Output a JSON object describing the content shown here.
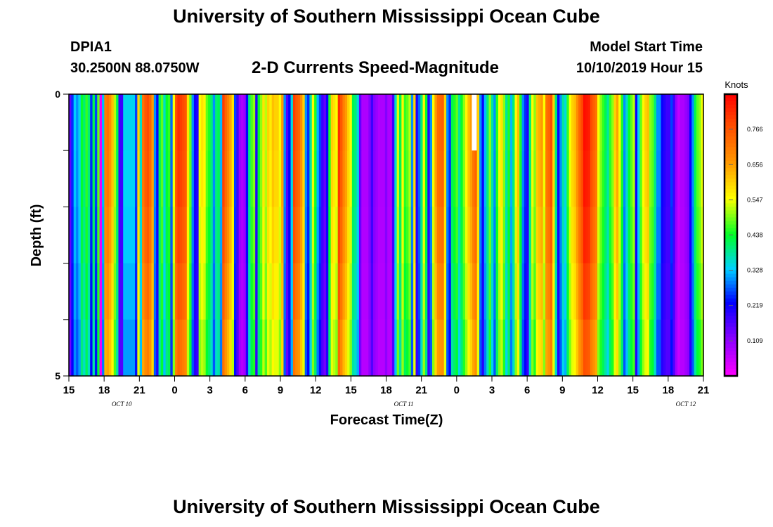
{
  "header": {
    "title": "University of Southern Mississippi Ocean Cube",
    "station_id": "DPIA1",
    "location": "30.2500N 88.0750W",
    "model_start_label": "Model Start Time",
    "model_start_value": "10/10/2019 Hour 15"
  },
  "footer": {
    "title": "University of Southern Mississippi Ocean Cube"
  },
  "chart_data": {
    "type": "heatmap",
    "title": "2-D Currents Speed-Magnitude",
    "xlabel": "Forecast Time(Z)",
    "ylabel": "Depth (ft)",
    "x_tick_labels": [
      "15",
      "18",
      "21",
      "0",
      "3",
      "6",
      "9",
      "12",
      "15",
      "18",
      "21",
      "0",
      "3",
      "6",
      "9",
      "12",
      "15",
      "18",
      "21"
    ],
    "date_labels": [
      {
        "label": "OCT 10",
        "at_hour": 19.5
      },
      {
        "label": "OCT 11",
        "at_hour": 43.5
      },
      {
        "label": "OCT 12",
        "at_hour": 67.5
      }
    ],
    "y_tick_labels": [
      "0",
      "5"
    ],
    "ylim": [
      0,
      5
    ],
    "x_hours": [
      15,
      69
    ],
    "depth_levels": 5,
    "colorbar": {
      "unit": "Knots",
      "min": 0.0,
      "max": 0.875,
      "ticks": [
        0.109,
        0.219,
        0.328,
        0.438,
        0.547,
        0.656,
        0.766
      ],
      "tick_labels": [
        "0.109",
        "0.219",
        "0.328",
        "0.438",
        "0.547",
        "0.656",
        "0.766"
      ]
    },
    "speed_knots_hourly": [
      0.15,
      0.25,
      0.33,
      0.3,
      0.34,
      0.44,
      0.4,
      0.46,
      0.4,
      0.25,
      0.42,
      0.26,
      0.48,
      0.02,
      0.32,
      0.7,
      0.72,
      0.68,
      0.62,
      0.52,
      0.42,
      0.18,
      0.18,
      0.34,
      0.34,
      0.34,
      0.34,
      0.34,
      0.26,
      0.6,
      0.36,
      0.72,
      0.76,
      0.78,
      0.74,
      0.66,
      0.3,
      0.22,
      0.42,
      0.48,
      0.36,
      0.44,
      0.46,
      0.28,
      0.55,
      0.78,
      0.82,
      0.8,
      0.78,
      0.76,
      0.58,
      0.48,
      0.3,
      0.22,
      0.2,
      0.55,
      0.58,
      0.56,
      0.48,
      0.45,
      0.4,
      0.3,
      0.4,
      0.42,
      0.32,
      0.8,
      0.74,
      0.7,
      0.65,
      0.58,
      0.26,
      0.18,
      0.1,
      0.08,
      0.1,
      0.22,
      0.4,
      0.47,
      0.5,
      0.2,
      0.44,
      0.5,
      0.58,
      0.52,
      0.6,
      0.57,
      0.62,
      0.6,
      0.6,
      0.55,
      0.66,
      0.3,
      0.16,
      0.23,
      0.35,
      0.8,
      0.76,
      0.74,
      0.68,
      0.6,
      0.3,
      0.25,
      0.38,
      0.55,
      0.45,
      0.32,
      0.26,
      0.18,
      0.15,
      0.22,
      0.45,
      0.6,
      0.58,
      0.55,
      0.82,
      0.76,
      0.7,
      0.66,
      0.6,
      0.55,
      0.42,
      0.4,
      0.35,
      0.15,
      0.08,
      0.08,
      0.08,
      0.12,
      0.18,
      0.12,
      0.1,
      0.08,
      0.08,
      0.08,
      0.12,
      0.08,
      0.08,
      0.18,
      0.36,
      0.54,
      0.42,
      0.56,
      0.46,
      0.48,
      0.52,
      0.3,
      0.6,
      0.2,
      0.28,
      0.4,
      0.56,
      0.44,
      0.2,
      0.3,
      0.55,
      0.66,
      0.73,
      0.74,
      0.75,
      0.6,
      0.3,
      0.25,
      0.42,
      0.45,
      0.48,
      0.38,
      0.44,
      0.5,
      0.56,
      0.62,
      0.66,
      0.72,
      0.75,
      0.6,
      0.3,
      0.22,
      0.32,
      0.4,
      0.5,
      0.38,
      0.3,
      0.45,
      0.55,
      0.58,
      0.5,
      0.38,
      0.45,
      0.32,
      0.4,
      0.55,
      0.62,
      0.45,
      0.3,
      0.25,
      0.2,
      0.4,
      0.55,
      0.5,
      0.62,
      0.64,
      0.66,
      0.55,
      0.72,
      0.74,
      0.78,
      0.6,
      0.4,
      0.22,
      0.3,
      0.38,
      0.35,
      0.46,
      0.55,
      0.6,
      0.62,
      0.68,
      0.74,
      0.78,
      0.86,
      0.85,
      0.84,
      0.78,
      0.75,
      0.72,
      0.55,
      0.5,
      0.46,
      0.42,
      0.38,
      0.46,
      0.5,
      0.6,
      0.65,
      0.55,
      0.45,
      0.3,
      0.36,
      0.44,
      0.48,
      0.52,
      0.22,
      0.34,
      0.48,
      0.56,
      0.6,
      0.62,
      0.5,
      0.48,
      0.4,
      0.3,
      0.3,
      0.22,
      0.2,
      0.18,
      0.18,
      0.26,
      0.18,
      0.1,
      0.06,
      0.08,
      0.08,
      0.1,
      0.12,
      0.22,
      0.3,
      0.42,
      0.48,
      0.5,
      0.55
    ],
    "depth_factor": [
      1.0,
      0.99,
      0.97,
      0.94,
      0.9
    ],
    "no_data_marker": {
      "hour": 49.5,
      "depth_levels": 1
    }
  }
}
